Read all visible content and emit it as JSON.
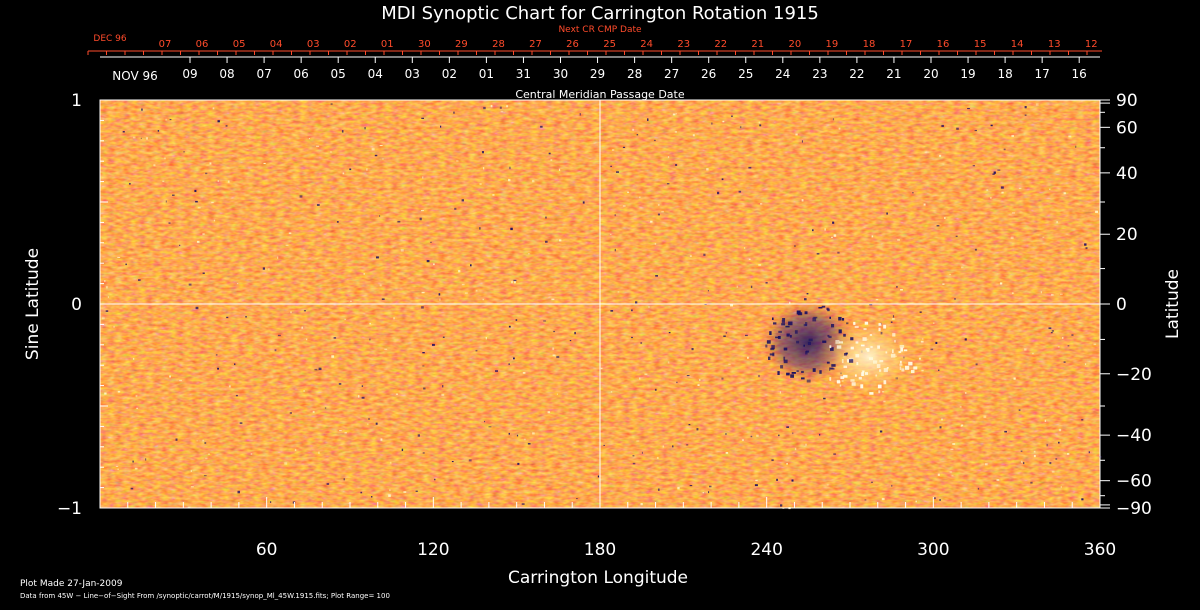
{
  "chart_data": {
    "type": "heatmap",
    "title": "MDI Synoptic Chart for Carrington Rotation 1915",
    "xlabel": "Carrington Longitude",
    "ylabel_left": "Sine Latitude",
    "ylabel_right": "Latitude",
    "xlim": [
      0,
      360
    ],
    "ylim": [
      -1,
      1
    ],
    "x_ticks": [
      60,
      120,
      180,
      240,
      300,
      360
    ],
    "y_ticks_left": [
      {
        "value": 1,
        "label": "1"
      },
      {
        "value": 0,
        "label": "0"
      },
      {
        "value": -1,
        "label": "−1"
      }
    ],
    "y_ticks_right_deg": [
      90,
      60,
      40,
      20,
      0,
      -20,
      -40,
      -60,
      -90
    ],
    "y_ticks_right_labels": [
      "90",
      "60",
      "40",
      "20",
      "0",
      "−20",
      "−40",
      "−60",
      "−90"
    ],
    "grid_lines": {
      "vertical_longitude": 180,
      "horizontal_sine_latitude": 0
    },
    "colorscale": {
      "positive": "#ffffff",
      "neutral": "#ff5a1e",
      "negative": "#1a1060"
    },
    "features": [
      {
        "name": "active region (bipolar)",
        "longitude": [
          240,
          290
        ],
        "latitude_deg": [
          -25,
          0
        ]
      }
    ],
    "top_axis": {
      "label": "Central Meridian Passage Date",
      "month_label": "NOV 96",
      "dates": [
        "09",
        "08",
        "07",
        "06",
        "05",
        "04",
        "03",
        "02",
        "01",
        "31",
        "30",
        "29",
        "28",
        "27",
        "26",
        "25",
        "24",
        "23",
        "22",
        "21",
        "20",
        "19",
        "18",
        "17",
        "16"
      ]
    },
    "next_cr_axis": {
      "label": "Next CR CMP Date",
      "month_label": "DEC 96",
      "dates": [
        "07",
        "06",
        "05",
        "04",
        "03",
        "02",
        "01",
        "30",
        "29",
        "28",
        "27",
        "26",
        "25",
        "24",
        "23",
        "22",
        "21",
        "20",
        "19",
        "18",
        "17",
        "16",
        "15",
        "14",
        "13",
        "12"
      ]
    }
  },
  "footer": {
    "plot_made": "Plot Made 27-Jan-2009",
    "data_source": "Data from 45W − Line−of−Sight From /synoptic/carrot/M/1915/synop_Ml_45W.1915.fits; Plot Range=  100"
  }
}
